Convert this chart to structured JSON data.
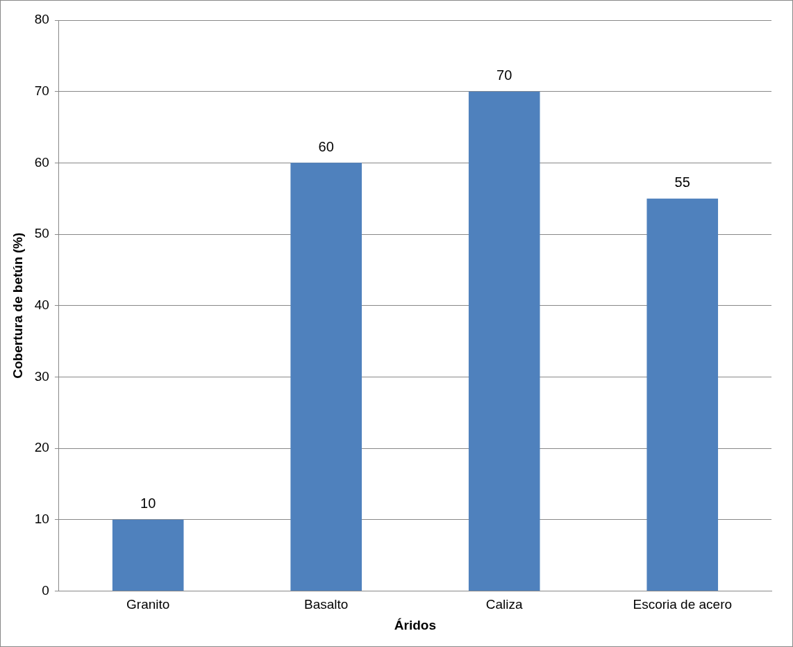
{
  "chart_data": {
    "type": "bar",
    "xlabel": "Áridos",
    "ylabel": "Cobertura de betún (%)",
    "categories": [
      "Granito",
      "Basalto",
      "Caliza",
      "Escoria de acero"
    ],
    "values": [
      10,
      60,
      70,
      55
    ],
    "color": "#4f81bd",
    "ylim": [
      0,
      80
    ],
    "yticks": [
      0,
      10,
      20,
      30,
      40,
      50,
      60,
      70,
      80
    ],
    "grid": "y",
    "data_labels": true
  }
}
